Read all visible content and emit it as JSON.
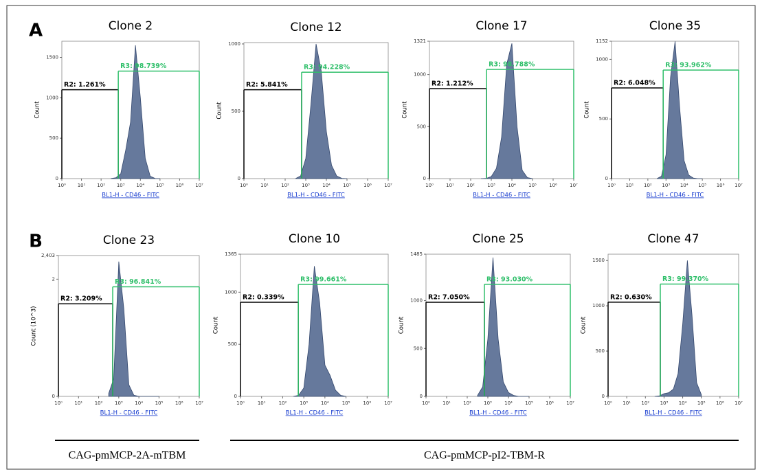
{
  "panel_labels": [
    "A",
    "B"
  ],
  "captions": [
    "CAG-pmMCP-2A-mTBM",
    "CAG-pmMCP-pI2-TBM-R"
  ],
  "chart_data": [
    {
      "type": "histogram",
      "title": "Clone 2",
      "xlabel": "BL1-H - CD46 - FITC",
      "ylabel": "Count",
      "log_x": true,
      "color": "#66799c",
      "x": [
        316,
        562,
        1000,
        1778,
        3162,
        5623,
        10000,
        17783,
        31623,
        56234,
        100000
      ],
      "values": [
        2,
        10,
        60,
        350,
        700,
        1650,
        1000,
        250,
        30,
        2,
        0
      ],
      "xlim": [
        1,
        10000000
      ],
      "xticks": [
        {
          "value": 1,
          "label": "10⁰"
        },
        {
          "value": 10,
          "label": "10¹"
        },
        {
          "value": 100,
          "label": "10²"
        },
        {
          "value": 1000,
          "label": "10³"
        },
        {
          "value": 10000,
          "label": "10⁴"
        },
        {
          "value": 100000,
          "label": "10⁵"
        },
        {
          "value": 1000000,
          "label": "10⁶"
        },
        {
          "value": 10000000,
          "label": "10⁷"
        }
      ],
      "ylim": [
        0,
        1700
      ],
      "yticks": [
        0,
        500,
        1000,
        1500
      ],
      "gates": [
        {
          "label": "R2: 1.261%",
          "xlim": [
            1,
            750
          ],
          "y": 1100,
          "color": "#000000"
        },
        {
          "label": "R3: 98.739%",
          "xlim": [
            750,
            10000000
          ],
          "y": 1330,
          "color": "#2fbf6a"
        }
      ]
    },
    {
      "type": "histogram",
      "title": "Clone 12",
      "xlabel": "BL1-H - CD46 - FITC",
      "ylabel": "Count",
      "log_x": true,
      "color": "#66799c",
      "x": [
        316,
        562,
        1000,
        1778,
        3162,
        5623,
        10000,
        17783,
        31623,
        56234,
        100000
      ],
      "values": [
        0,
        20,
        150,
        550,
        1000,
        800,
        350,
        100,
        20,
        2,
        0
      ],
      "xlim": [
        1,
        10000000
      ],
      "xticks": [
        {
          "value": 1,
          "label": "10⁰"
        },
        {
          "value": 10,
          "label": "10¹"
        },
        {
          "value": 100,
          "label": "10²"
        },
        {
          "value": 1000,
          "label": "10³"
        },
        {
          "value": 10000,
          "label": "10⁴"
        },
        {
          "value": 100000,
          "label": "10⁵"
        },
        {
          "value": 1000000,
          "label": "10⁶"
        },
        {
          "value": 10000000,
          "label": "10⁷"
        }
      ],
      "ylim": [
        0,
        1010
      ],
      "yticks": [
        0,
        500,
        1000
      ],
      "gates": [
        {
          "label": "R2: 5.841%",
          "xlim": [
            1,
            630
          ],
          "y": 660,
          "color": "#000000"
        },
        {
          "label": "R3: 94.228%",
          "xlim": [
            630,
            10000000
          ],
          "y": 790,
          "color": "#2fbf6a"
        }
      ]
    },
    {
      "type": "histogram",
      "title": "Clone 17",
      "xlabel": "BL1-H - CD46 - FITC",
      "ylabel": "Count",
      "log_x": true,
      "color": "#66799c",
      "x": [
        316,
        562,
        1000,
        1778,
        3162,
        5623,
        10000,
        17783,
        31623,
        56234,
        100000
      ],
      "values": [
        0,
        2,
        20,
        100,
        400,
        1100,
        1300,
        500,
        80,
        10,
        0
      ],
      "xlim": [
        1,
        10000000
      ],
      "xticks": [
        {
          "value": 1,
          "label": "10⁰"
        },
        {
          "value": 10,
          "label": "10¹"
        },
        {
          "value": 100,
          "label": "10²"
        },
        {
          "value": 1000,
          "label": "10³"
        },
        {
          "value": 10000,
          "label": "10⁴"
        },
        {
          "value": 100000,
          "label": "10⁵"
        },
        {
          "value": 1000000,
          "label": "10⁶"
        },
        {
          "value": 10000000,
          "label": "10⁷"
        }
      ],
      "ylim": [
        0,
        1321
      ],
      "yticks": [
        0,
        500,
        1000,
        1321
      ],
      "gates": [
        {
          "label": "R2: 1.212%",
          "xlim": [
            1,
            590
          ],
          "y": 865,
          "color": "#000000"
        },
        {
          "label": "R3: 98.788%",
          "xlim": [
            590,
            10000000
          ],
          "y": 1050,
          "color": "#2fbf6a"
        }
      ]
    },
    {
      "type": "histogram",
      "title": "Clone 35",
      "xlabel": "BL1-H - CD46 - FITC",
      "ylabel": "Count",
      "log_x": true,
      "color": "#66799c",
      "x": [
        316,
        562,
        1000,
        1778,
        3162,
        5623,
        10000,
        17783,
        31623,
        56234,
        100000
      ],
      "values": [
        0,
        20,
        200,
        850,
        1150,
        600,
        150,
        30,
        5,
        0,
        0
      ],
      "xlim": [
        1,
        10000000
      ],
      "xticks": [
        {
          "value": 1,
          "label": "10⁰"
        },
        {
          "value": 10,
          "label": "10¹"
        },
        {
          "value": 100,
          "label": "10²"
        },
        {
          "value": 1000,
          "label": "10³"
        },
        {
          "value": 10000,
          "label": "10⁴"
        },
        {
          "value": 100000,
          "label": "10⁵"
        },
        {
          "value": 1000000,
          "label": "10⁶"
        },
        {
          "value": 10000000,
          "label": "10⁷"
        }
      ],
      "ylim": [
        0,
        1152
      ],
      "yticks": [
        0,
        500,
        1000,
        1152
      ],
      "gates": [
        {
          "label": "R2: 6.048%",
          "xlim": [
            1,
            700
          ],
          "y": 760,
          "color": "#000000"
        },
        {
          "label": "R3: 93.962%",
          "xlim": [
            700,
            10000000
          ],
          "y": 910,
          "color": "#2fbf6a"
        }
      ]
    },
    {
      "type": "histogram",
      "title": "Clone 23",
      "xlabel": "BL1-H - CD46 - FITC",
      "ylabel": "Count (10^3)",
      "log_x": true,
      "color": "#66799c",
      "x": [
        316,
        562,
        1000,
        1778,
        3162,
        5623,
        10000,
        17783,
        31623,
        56234,
        100000
      ],
      "values": [
        0.05,
        0.3,
        2.3,
        1.5,
        0.2,
        0.02,
        0,
        0,
        0,
        0,
        0
      ],
      "xlim": [
        1,
        10000000
      ],
      "xticks": [
        {
          "value": 1,
          "label": "10⁰"
        },
        {
          "value": 10,
          "label": "10¹"
        },
        {
          "value": 100,
          "label": "10²"
        },
        {
          "value": 1000,
          "label": "10³"
        },
        {
          "value": 10000,
          "label": "10⁴"
        },
        {
          "value": 100000,
          "label": "10⁵"
        },
        {
          "value": 1000000,
          "label": "10⁶"
        },
        {
          "value": 10000000,
          "label": "10⁷"
        }
      ],
      "ylim": [
        0,
        2.403
      ],
      "yticks": [
        0,
        2,
        {
          "value": 2.403,
          "label": "2,403"
        }
      ],
      "gates": [
        {
          "label": "R2: 3.209%",
          "xlim": [
            1,
            500
          ],
          "y": 1.58,
          "color": "#000000"
        },
        {
          "label": "R3: 96.841%",
          "xlim": [
            500,
            10000000
          ],
          "y": 1.87,
          "color": "#2fbf6a"
        }
      ]
    },
    {
      "type": "histogram",
      "title": "Clone 10",
      "xlabel": "BL1-H - CD46 - FITC",
      "ylabel": "Count",
      "log_x": true,
      "color": "#66799c",
      "x": [
        316,
        562,
        1000,
        1778,
        3162,
        5623,
        10000,
        17783,
        31623,
        56234,
        100000
      ],
      "values": [
        0,
        10,
        80,
        500,
        1250,
        900,
        300,
        200,
        60,
        10,
        0
      ],
      "xlim": [
        1,
        10000000
      ],
      "xticks": [
        {
          "value": 1,
          "label": "10⁰"
        },
        {
          "value": 10,
          "label": "10¹"
        },
        {
          "value": 100,
          "label": "10²"
        },
        {
          "value": 1000,
          "label": "10³"
        },
        {
          "value": 10000,
          "label": "10⁴"
        },
        {
          "value": 100000,
          "label": "10⁵"
        },
        {
          "value": 1000000,
          "label": "10⁶"
        },
        {
          "value": 10000000,
          "label": "10⁷"
        }
      ],
      "ylim": [
        0,
        1365
      ],
      "yticks": [
        0,
        500,
        1000,
        1365
      ],
      "gates": [
        {
          "label": "R2: 0.339%",
          "xlim": [
            1,
            550
          ],
          "y": 903,
          "color": "#000000"
        },
        {
          "label": "R3: 99.661%",
          "xlim": [
            550,
            10000000
          ],
          "y": 1075,
          "color": "#2fbf6a"
        }
      ]
    },
    {
      "type": "histogram",
      "title": "Clone 25",
      "xlabel": "BL1-H - CD46 - FITC",
      "ylabel": "Count",
      "log_x": true,
      "color": "#66799c",
      "x": [
        316,
        562,
        1000,
        1778,
        3162,
        5623,
        10000,
        17783,
        31623,
        56234,
        100000
      ],
      "values": [
        10,
        100,
        600,
        1450,
        600,
        150,
        40,
        10,
        0,
        0,
        0
      ],
      "xlim": [
        1,
        10000000
      ],
      "xticks": [
        {
          "value": 1,
          "label": "10⁰"
        },
        {
          "value": 10,
          "label": "10¹"
        },
        {
          "value": 100,
          "label": "10²"
        },
        {
          "value": 1000,
          "label": "10³"
        },
        {
          "value": 10000,
          "label": "10⁴"
        },
        {
          "value": 100000,
          "label": "10⁵"
        },
        {
          "value": 1000000,
          "label": "10⁶"
        },
        {
          "value": 10000000,
          "label": "10⁷"
        }
      ],
      "ylim": [
        0,
        1485
      ],
      "yticks": [
        0,
        500,
        1000,
        1485
      ],
      "gates": [
        {
          "label": "R2: 7.050%",
          "xlim": [
            1,
            680
          ],
          "y": 983,
          "color": "#000000"
        },
        {
          "label": "R3: 93.030%",
          "xlim": [
            680,
            10000000
          ],
          "y": 1170,
          "color": "#2fbf6a"
        }
      ]
    },
    {
      "type": "histogram",
      "title": "Clone 47",
      "xlabel": "BL1-H - CD46 - FITC",
      "ylabel": "Count",
      "log_x": true,
      "color": "#66799c",
      "x": [
        316,
        562,
        1000,
        1778,
        3162,
        5623,
        10000,
        17783,
        31623,
        56234,
        100000
      ],
      "values": [
        0,
        5,
        30,
        40,
        80,
        250,
        800,
        1500,
        900,
        150,
        20
      ],
      "xlim": [
        1,
        10000000
      ],
      "xticks": [
        {
          "value": 1,
          "label": "10⁰"
        },
        {
          "value": 10,
          "label": "10¹"
        },
        {
          "value": 100,
          "label": "10²"
        },
        {
          "value": 1000,
          "label": "10³"
        },
        {
          "value": 10000,
          "label": "10⁴"
        },
        {
          "value": 100000,
          "label": "10⁵"
        },
        {
          "value": 1000000,
          "label": "10⁶"
        },
        {
          "value": 10000000,
          "label": "10⁷"
        }
      ],
      "ylim": [
        0,
        1570
      ],
      "yticks": [
        0,
        500,
        1000,
        1500
      ],
      "gates": [
        {
          "label": "R2: 0.630%",
          "xlim": [
            1,
            630
          ],
          "y": 1040,
          "color": "#000000"
        },
        {
          "label": "R3: 99.370%",
          "xlim": [
            630,
            10000000
          ],
          "y": 1240,
          "color": "#2fbf6a"
        }
      ]
    }
  ]
}
